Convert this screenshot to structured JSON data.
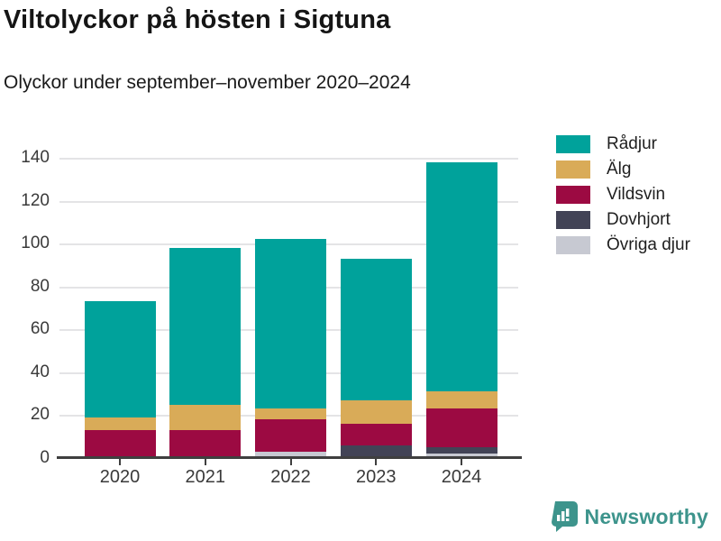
{
  "header": {
    "title": "Viltolyckor på hösten i Sigtuna",
    "subtitle": "Olyckor under september–november 2020–2024"
  },
  "chart_data": {
    "type": "bar",
    "stacked": true,
    "title": "Viltolyckor på hösten i Sigtuna",
    "subtitle": "Olyckor under september–november 2020–2024",
    "categories": [
      "2020",
      "2021",
      "2022",
      "2023",
      "2024"
    ],
    "series": [
      {
        "name": "Rådjur",
        "color": "#00a29b",
        "values": [
          54,
          73,
          79,
          66,
          107
        ]
      },
      {
        "name": "Älg",
        "color": "#d9ab58",
        "values": [
          6,
          12,
          5,
          11,
          8
        ]
      },
      {
        "name": "Vildsvin",
        "color": "#9c0a42",
        "values": [
          13,
          13,
          15,
          10,
          18
        ]
      },
      {
        "name": "Dovhjort",
        "color": "#424356",
        "values": [
          0,
          0,
          0,
          5,
          3
        ]
      },
      {
        "name": "Övriga djur",
        "color": "#c7c9d2",
        "values": [
          0,
          0,
          3,
          1,
          2
        ]
      }
    ],
    "totals": [
      73,
      98,
      102,
      93,
      138
    ],
    "ylim": [
      0,
      140
    ],
    "yticks": [
      0,
      20,
      40,
      60,
      80,
      100,
      120,
      140
    ],
    "grid": true,
    "legend_position": "right",
    "axis_color": "#3f3f3f",
    "gridline_color": "#e4e4e6"
  },
  "footer": {
    "brand": "Newsworthy",
    "brand_color": "#3d948c"
  }
}
